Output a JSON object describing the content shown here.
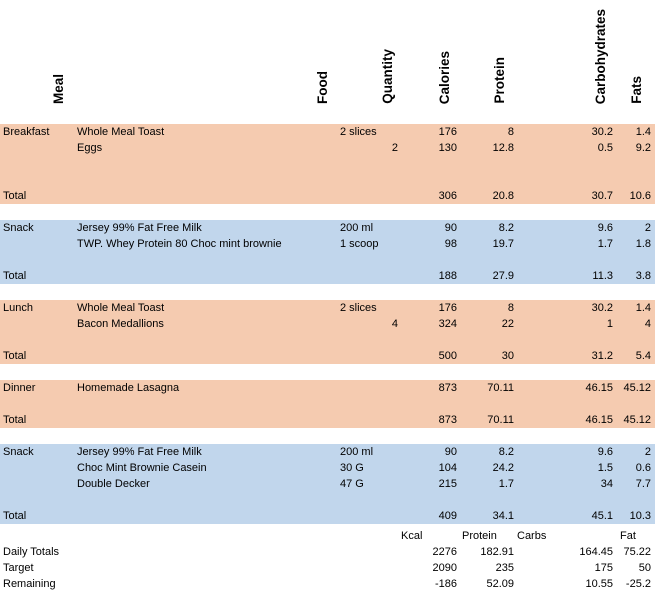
{
  "headers": {
    "meal": "Meal",
    "food": "Food",
    "quantity": "Quantity",
    "calories": "Calories",
    "protein": "Protein",
    "carbohydrates": "Carbohydrates",
    "fats": "Fats"
  },
  "sections": [
    {
      "color": "#f5cbb0",
      "rows": [
        {
          "meal": "Breakfast",
          "food": "Whole Meal Toast",
          "qty": "2 slices",
          "qnum": "",
          "cal": "176",
          "pro": "8",
          "carb": "30.2",
          "fat": "1.4"
        },
        {
          "meal": "",
          "food": "Eggs",
          "qty": "",
          "qnum": "2",
          "cal": "130",
          "pro": "12.8",
          "carb": "0.5",
          "fat": "9.2"
        }
      ],
      "total": {
        "label": "Total",
        "cal": "306",
        "pro": "20.8",
        "carb": "30.7",
        "fat": "10.6"
      }
    },
    {
      "color": "#c1d6ec",
      "rows": [
        {
          "meal": "Snack",
          "food": "Jersey 99% Fat Free Milk",
          "qty": "200 ml",
          "qnum": "",
          "cal": "90",
          "pro": "8.2",
          "carb": "9.6",
          "fat": "2"
        },
        {
          "meal": "",
          "food": "TWP. Whey Protein 80 Choc mint brownie",
          "qty": "1 scoop",
          "qnum": "",
          "cal": "98",
          "pro": "19.7",
          "carb": "1.7",
          "fat": "1.8"
        }
      ],
      "total": {
        "label": "Total",
        "cal": "188",
        "pro": "27.9",
        "carb": "11.3",
        "fat": "3.8"
      }
    },
    {
      "color": "#f5cbb0",
      "rows": [
        {
          "meal": "Lunch",
          "food": "Whole Meal Toast",
          "qty": "2 slices",
          "qnum": "",
          "cal": "176",
          "pro": "8",
          "carb": "30.2",
          "fat": "1.4"
        },
        {
          "meal": "",
          "food": "Bacon Medallions",
          "qty": "",
          "qnum": "4",
          "cal": "324",
          "pro": "22",
          "carb": "1",
          "fat": "4"
        }
      ],
      "total": {
        "label": "Total",
        "cal": "500",
        "pro": "30",
        "carb": "31.2",
        "fat": "5.4"
      }
    },
    {
      "color": "#f5cbb0",
      "rows": [
        {
          "meal": "Dinner",
          "food": "Homemade Lasagna",
          "qty": "",
          "qnum": "",
          "cal": "873",
          "pro": "70.11",
          "carb": "46.15",
          "fat": "45.12"
        }
      ],
      "total": {
        "label": "Total",
        "cal": "873",
        "pro": "70.11",
        "carb": "46.15",
        "fat": "45.12"
      }
    },
    {
      "color": "#c1d6ec",
      "rows": [
        {
          "meal": "Snack",
          "food": "Jersey 99% Fat Free Milk",
          "qty": "200 ml",
          "qnum": "",
          "cal": "90",
          "pro": "8.2",
          "carb": "9.6",
          "fat": "2"
        },
        {
          "meal": "",
          "food": "Choc Mint Brownie Casein",
          "qty": "30 G",
          "qnum": "",
          "cal": "104",
          "pro": "24.2",
          "carb": "1.5",
          "fat": "0.6"
        },
        {
          "meal": "",
          "food": "Double Decker",
          "qty": "47  G",
          "qnum": "",
          "cal": "215",
          "pro": "1.7",
          "carb": "34",
          "fat": "7.7"
        }
      ],
      "total": {
        "label": "Total",
        "cal": "409",
        "pro": "34.1",
        "carb": "45.1",
        "fat": "10.3"
      }
    }
  ],
  "summary": {
    "headers": {
      "kcal": "Kcal",
      "protein": "Protein",
      "carbs": "Carbs",
      "fat": "Fat"
    },
    "rows": [
      {
        "label": "Daily Totals",
        "cal": "2276",
        "pro": "182.91",
        "carb": "164.45",
        "fat": "75.22"
      },
      {
        "label": "Target",
        "cal": "2090",
        "pro": "235",
        "carb": "175",
        "fat": "50"
      },
      {
        "label": "Remaining",
        "cal": "-186",
        "pro": "52.09",
        "carb": "10.55",
        "fat": "-25.2"
      }
    ]
  }
}
